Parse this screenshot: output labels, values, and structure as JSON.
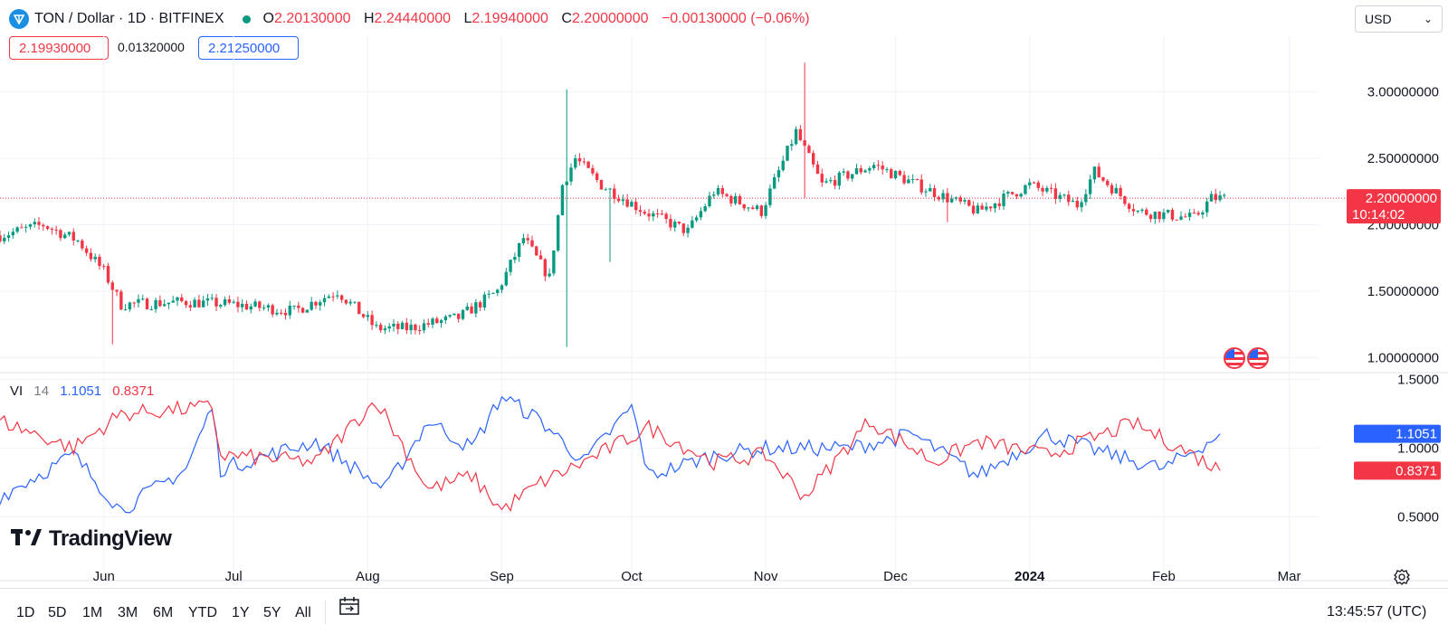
{
  "header": {
    "title": "TON / Dollar · 1D · BITFINEX",
    "ohlc": [
      {
        "key": "O",
        "value": "2.20130000"
      },
      {
        "key": "H",
        "value": "2.24440000"
      },
      {
        "key": "L",
        "value": "2.19940000"
      },
      {
        "key": "C",
        "value": "2.20000000"
      }
    ],
    "change": "−0.00130000 (−0.06%)",
    "bid": "2.19930000",
    "spread": "0.01320000",
    "ask": "2.21250000",
    "currency": "USD"
  },
  "colors": {
    "up": "#089981",
    "down": "#f23645",
    "vi_plus": "#2962ff",
    "vi_minus": "#f23645",
    "grid": "#f0f3fa"
  },
  "price_axis": {
    "ticks": [
      "3.00000000",
      "2.50000000",
      "2.00000000",
      "1.50000000",
      "1.00000000"
    ],
    "last_price": "2.20000000",
    "countdown": "10:14:02"
  },
  "vi_axis": {
    "ticks": [
      "1.5000",
      "1.0000",
      "0.5000"
    ]
  },
  "time_axis": [
    "Jun",
    "Jul",
    "Aug",
    "Sep",
    "Oct",
    "Nov",
    "Dec",
    "2024",
    "Feb",
    "Mar"
  ],
  "indicator": {
    "name": "VI",
    "length": "14",
    "plus": "1.1051",
    "minus": "0.8371"
  },
  "branding": "TradingView",
  "ranges": [
    "1D",
    "5D",
    "1M",
    "3M",
    "6M",
    "YTD",
    "1Y",
    "5Y",
    "All"
  ],
  "clock": "13:45:57 (UTC)",
  "icons": {
    "logo": "ton-diamond-icon",
    "calendar": "calendar-range-icon",
    "settings": "gear-icon",
    "flags": "us-flag-icon"
  },
  "chart_data": [
    {
      "type": "candlestick",
      "title": "TON / Dollar · 1D · BITFINEX",
      "ylim": [
        0.88,
        3.42
      ],
      "xlim": [
        "2023-05-08",
        "2024-03-08"
      ],
      "grid": true,
      "anchors": [
        [
          "2023-05-08",
          1.92
        ],
        [
          "2023-05-18",
          2.0
        ],
        [
          "2023-05-26",
          1.88
        ],
        [
          "2023-06-01",
          1.65
        ],
        [
          "2023-06-05",
          1.4
        ],
        [
          "2023-06-20",
          1.42
        ],
        [
          "2023-07-01",
          1.4
        ],
        [
          "2023-07-15",
          1.35
        ],
        [
          "2023-07-25",
          1.5
        ],
        [
          "2023-08-03",
          1.22
        ],
        [
          "2023-08-10",
          1.22
        ],
        [
          "2023-08-22",
          1.3
        ],
        [
          "2023-08-31",
          1.5
        ],
        [
          "2023-09-06",
          1.9
        ],
        [
          "2023-09-12",
          1.6
        ],
        [
          "2023-09-15",
          2.3
        ],
        [
          "2023-09-18",
          2.5
        ],
        [
          "2023-09-24",
          2.3
        ],
        [
          "2023-10-04",
          2.1
        ],
        [
          "2023-10-14",
          1.95
        ],
        [
          "2023-10-20",
          2.25
        ],
        [
          "2023-10-31",
          2.1
        ],
        [
          "2023-11-08",
          2.7
        ],
        [
          "2023-11-14",
          2.3
        ],
        [
          "2023-11-26",
          2.45
        ],
        [
          "2023-12-06",
          2.3
        ],
        [
          "2023-12-20",
          2.1
        ],
        [
          "2024-01-01",
          2.3
        ],
        [
          "2024-01-12",
          2.15
        ],
        [
          "2024-01-16",
          2.4
        ],
        [
          "2024-01-26",
          2.1
        ],
        [
          "2024-02-08",
          2.05
        ],
        [
          "2024-02-12",
          2.2
        ],
        [
          "2024-02-15",
          2.2
        ]
      ],
      "spikes": [
        {
          "date": "2023-06-03",
          "low": 1.1
        },
        {
          "date": "2023-09-16",
          "high": 3.02,
          "low": 1.08
        },
        {
          "date": "2023-09-26",
          "low": 1.72
        },
        {
          "date": "2023-11-10",
          "high": 3.22,
          "low": 2.2
        },
        {
          "date": "2023-12-13",
          "low": 2.02
        }
      ]
    },
    {
      "type": "line",
      "name": "VI 14",
      "ylim": [
        0.3,
        1.55
      ],
      "series": [
        {
          "name": "VI+",
          "anchors": [
            [
              "2023-05-08",
              0.65
            ],
            [
              "2023-05-25",
              0.95
            ],
            [
              "2023-06-05",
              0.55
            ],
            [
              "2023-06-20",
              0.85
            ],
            [
              "2023-06-26",
              1.3
            ],
            [
              "2023-06-28",
              0.85
            ],
            [
              "2023-07-20",
              1.05
            ],
            [
              "2023-08-05",
              0.7
            ],
            [
              "2023-08-15",
              1.2
            ],
            [
              "2023-08-25",
              1.0
            ],
            [
              "2023-09-01",
              1.38
            ],
            [
              "2023-09-10",
              1.2
            ],
            [
              "2023-09-20",
              0.9
            ],
            [
              "2023-10-01",
              1.3
            ],
            [
              "2023-10-05",
              0.8
            ],
            [
              "2023-10-20",
              0.95
            ],
            [
              "2023-11-01",
              1.0
            ],
            [
              "2023-11-20",
              1.0
            ],
            [
              "2023-12-05",
              1.1
            ],
            [
              "2023-12-20",
              0.8
            ],
            [
              "2024-01-05",
              1.1
            ],
            [
              "2024-01-20",
              0.95
            ],
            [
              "2024-02-01",
              0.85
            ],
            [
              "2024-02-14",
              1.1
            ]
          ]
        },
        {
          "name": "VI−",
          "anchors": [
            [
              "2023-05-08",
              1.2
            ],
            [
              "2023-05-25",
              1.0
            ],
            [
              "2023-06-05",
              1.25
            ],
            [
              "2023-06-26",
              1.3
            ],
            [
              "2023-06-28",
              0.95
            ],
            [
              "2023-07-20",
              0.9
            ],
            [
              "2023-08-03",
              1.35
            ],
            [
              "2023-08-15",
              0.7
            ],
            [
              "2023-08-25",
              0.8
            ],
            [
              "2023-09-01",
              0.55
            ],
            [
              "2023-09-10",
              0.75
            ],
            [
              "2023-09-20",
              0.9
            ],
            [
              "2023-10-05",
              1.15
            ],
            [
              "2023-10-20",
              0.9
            ],
            [
              "2023-11-01",
              0.95
            ],
            [
              "2023-11-10",
              0.65
            ],
            [
              "2023-11-25",
              1.2
            ],
            [
              "2023-12-10",
              0.9
            ],
            [
              "2023-12-20",
              1.05
            ],
            [
              "2024-01-05",
              0.95
            ],
            [
              "2024-01-25",
              1.18
            ],
            [
              "2024-02-05",
              1.0
            ],
            [
              "2024-02-14",
              0.84
            ]
          ]
        }
      ]
    }
  ]
}
